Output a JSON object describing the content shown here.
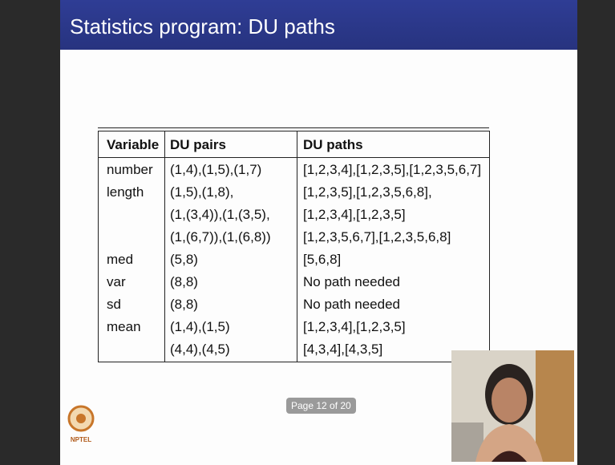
{
  "slide_title": "Statistics program: DU paths",
  "table": {
    "header": [
      "Variable",
      "DU pairs",
      "DU paths"
    ],
    "rows": [
      {
        "variable": "number",
        "pairs": [
          "(1,4),(1,5),(1,7)"
        ],
        "paths": [
          "[1,2,3,4],[1,2,3,5],[1,2,3,5,6,7]"
        ]
      },
      {
        "variable": "length",
        "pairs": [
          "(1,5),(1,8),",
          "(1,(3,4)),(1,(3,5),",
          "(1,(6,7)),(1,(6,8))"
        ],
        "paths": [
          "[1,2,3,5],[1,2,3,5,6,8],",
          "[1,2,3,4],[1,2,3,5]",
          "[1,2,3,5,6,7],[1,2,3,5,6,8]"
        ]
      },
      {
        "variable": "med",
        "pairs": [
          "(5,8)"
        ],
        "paths": [
          "[5,6,8]"
        ]
      },
      {
        "variable": "var",
        "pairs": [
          "(8,8)"
        ],
        "paths": [
          "No path needed"
        ]
      },
      {
        "variable": "sd",
        "pairs": [
          "(8,8)"
        ],
        "paths": [
          "No path needed"
        ]
      },
      {
        "variable": "mean",
        "pairs": [
          "(1,4),(1,5)",
          "(4,4),(4,5)"
        ],
        "paths": [
          "[1,2,3,4],[1,2,3,5]",
          "[4,3,4],[4,3,5]"
        ]
      }
    ]
  },
  "page_label": "Page 12 of 20",
  "logo_text": "NPTEL"
}
